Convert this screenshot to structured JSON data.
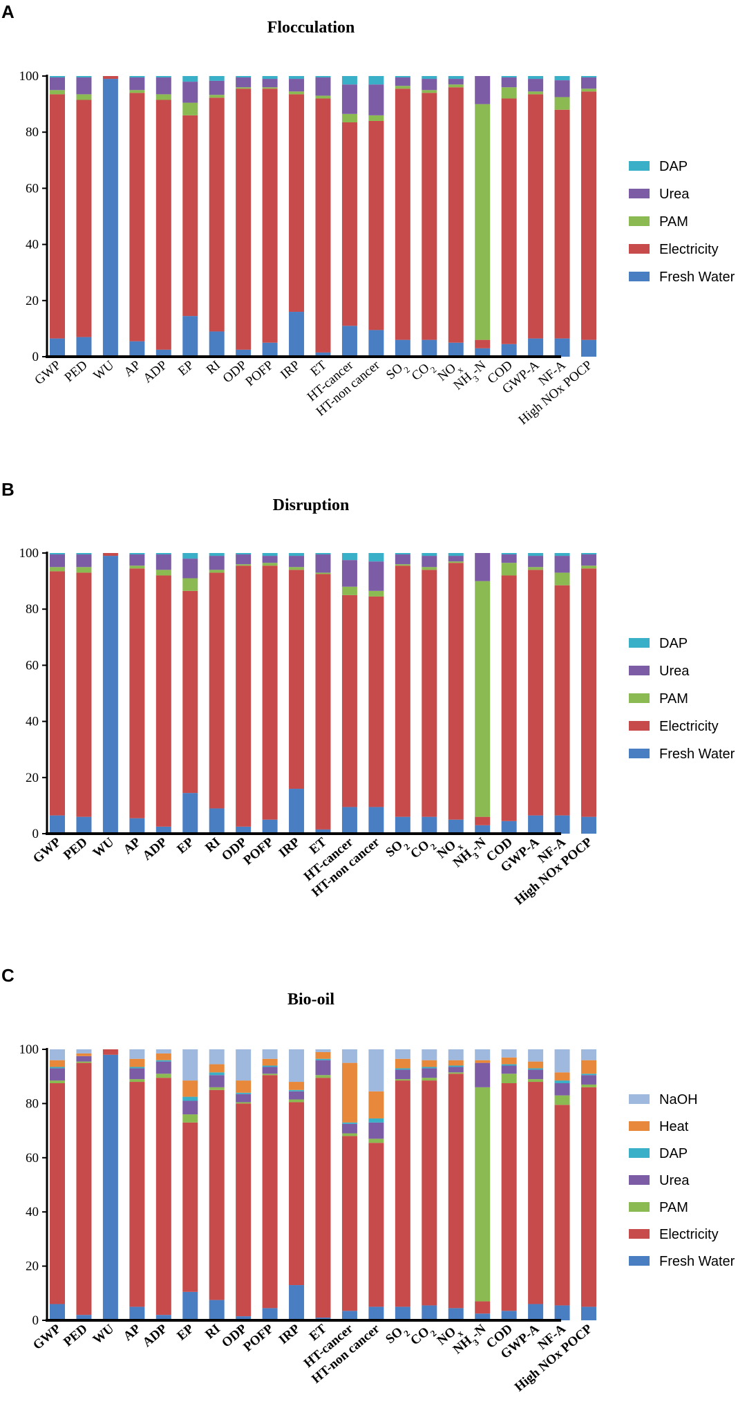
{
  "chart_data": [
    {
      "panel": "A",
      "type": "bar",
      "stacked": true,
      "title": "Flocculation",
      "bold_category_labels": false,
      "xlabel": "",
      "ylabel": "",
      "ylim": [
        0,
        100
      ],
      "yticks": [
        "0",
        "20",
        "40",
        "60",
        "80",
        "100"
      ],
      "categories": [
        "GWP",
        "PED",
        "WU",
        "AP",
        "ADP",
        "EP",
        "RI",
        "ODP",
        "POFP",
        "IRP",
        "ET",
        "HT-cancer",
        "HT-non cancer",
        "SO2",
        "CO2",
        "NOx",
        "NH3-N",
        "COD",
        "GWP-A",
        "NF-A",
        "High NOx POCP"
      ],
      "legend": [
        "DAP",
        "Urea",
        "PAM",
        "Electricity",
        "Fresh Water"
      ],
      "series": [
        {
          "name": "Fresh Water",
          "color": "#4a7ec2",
          "values": [
            6.5,
            7,
            99,
            5.5,
            2.5,
            14.5,
            9,
            2.5,
            5,
            16,
            1.5,
            11,
            9.5,
            6,
            6,
            5,
            3,
            4.5,
            6.5,
            6.5,
            6
          ]
        },
        {
          "name": "Electricity",
          "color": "#c84b4b",
          "values": [
            87,
            84.5,
            1,
            88.5,
            89,
            71.5,
            83.3,
            93,
            90.5,
            77.5,
            90.5,
            72.5,
            74.5,
            89.5,
            88,
            91,
            3,
            87.5,
            87,
            81.5,
            88.5
          ]
        },
        {
          "name": "PAM",
          "color": "#8cba52",
          "values": [
            1.5,
            2,
            0,
            1,
            2,
            4.5,
            1,
            0.5,
            0.5,
            1,
            1,
            3,
            2,
            1,
            1,
            1,
            84,
            4,
            1,
            4.5,
            1
          ]
        },
        {
          "name": "Urea",
          "color": "#7d5ca6",
          "values": [
            4.5,
            6,
            0,
            4.5,
            6,
            7.5,
            5,
            3.5,
            3,
            4.5,
            6.5,
            10.5,
            11,
            3,
            4,
            2,
            10,
            3.5,
            4.5,
            6,
            4
          ]
        },
        {
          "name": "DAP",
          "color": "#3ab0c8",
          "values": [
            0.5,
            0.5,
            0,
            0.5,
            0.5,
            2,
            1.7,
            0.5,
            1,
            1,
            0.5,
            3,
            3,
            0.5,
            1,
            1,
            0,
            0.5,
            1,
            1.5,
            0.5
          ]
        }
      ]
    },
    {
      "panel": "B",
      "type": "bar",
      "stacked": true,
      "title": "Disruption",
      "bold_category_labels": true,
      "xlabel": "",
      "ylabel": "",
      "ylim": [
        0,
        100
      ],
      "yticks": [
        "0",
        "20",
        "40",
        "60",
        "80",
        "100"
      ],
      "categories": [
        "GWP",
        "PED",
        "WU",
        "AP",
        "ADP",
        "EP",
        "RI",
        "ODP",
        "POFP",
        "IRP",
        "ET",
        "HT-cancer",
        "HT-non cancer",
        "SO2",
        "CO2",
        "NOx",
        "NH3-N",
        "COD",
        "GWP-A",
        "NF-A",
        "High NOx POCP"
      ],
      "legend": [
        "DAP",
        "Urea",
        "PAM",
        "Electricity",
        "Fresh Water"
      ],
      "series": [
        {
          "name": "Fresh Water",
          "color": "#4a7ec2",
          "values": [
            6.5,
            6,
            99,
            5.5,
            2.5,
            14.5,
            9,
            2.5,
            5,
            16,
            1.5,
            9.5,
            9.5,
            6,
            6,
            5,
            3,
            4.5,
            6.5,
            6.5,
            6
          ]
        },
        {
          "name": "Electricity",
          "color": "#c84b4b",
          "values": [
            87,
            87,
            1,
            89,
            89.5,
            72,
            84,
            93,
            90.5,
            78,
            91,
            75.5,
            75,
            89.5,
            88,
            91.5,
            3,
            87.5,
            87.5,
            82,
            88.5
          ]
        },
        {
          "name": "PAM",
          "color": "#8cba52",
          "values": [
            1.5,
            2,
            0,
            1,
            2,
            4.5,
            1,
            0.5,
            1,
            1,
            0.5,
            3,
            2,
            0.5,
            1,
            0.5,
            84,
            4.5,
            1,
            4.5,
            1
          ]
        },
        {
          "name": "Urea",
          "color": "#7d5ca6",
          "values": [
            4.5,
            4.5,
            0,
            4,
            5.5,
            7,
            5,
            3.5,
            2.5,
            4,
            6.5,
            9.5,
            10.5,
            3.5,
            4,
            2,
            10,
            3,
            4,
            6,
            4
          ]
        },
        {
          "name": "DAP",
          "color": "#3ab0c8",
          "values": [
            0.5,
            0.5,
            0,
            0.5,
            0.5,
            2,
            1,
            0.5,
            1,
            1,
            0.5,
            2.5,
            3,
            0.5,
            1,
            1,
            0,
            0.5,
            1,
            1,
            0.5
          ]
        }
      ]
    },
    {
      "panel": "C",
      "type": "bar",
      "stacked": true,
      "title": "Bio-oil",
      "bold_category_labels": true,
      "xlabel": "",
      "ylabel": "",
      "ylim": [
        0,
        100
      ],
      "yticks": [
        "0",
        "20",
        "40",
        "60",
        "80",
        "100"
      ],
      "categories": [
        "GWP",
        "PED",
        "WU",
        "AP",
        "ADP",
        "EP",
        "RI",
        "ODP",
        "POFP",
        "IRP",
        "ET",
        "HT-cancer",
        "HT-non cancer",
        "SO2",
        "CO2",
        "NOx",
        "NH3-N",
        "COD",
        "GWP-A",
        "NF-A",
        "High NOx POCP"
      ],
      "legend": [
        "NaOH",
        "Heat",
        "DAP",
        "Urea",
        "PAM",
        "Electricity",
        "Fresh Water"
      ],
      "series": [
        {
          "name": "Fresh Water",
          "color": "#4a7ec2",
          "values": [
            6,
            2,
            98,
            5,
            2,
            10.5,
            7.5,
            1.5,
            4.5,
            13,
            1,
            3.5,
            5,
            5,
            5.5,
            4.5,
            2.5,
            3.5,
            6,
            5.5,
            5
          ]
        },
        {
          "name": "Electricity",
          "color": "#c84b4b",
          "values": [
            81.5,
            93,
            2,
            83,
            87.5,
            62.5,
            77.5,
            78.5,
            86,
            67.5,
            88.5,
            64.5,
            60.5,
            83.5,
            83,
            86.5,
            4.5,
            84,
            82,
            74,
            81
          ]
        },
        {
          "name": "PAM",
          "color": "#8cba52",
          "values": [
            1,
            0.5,
            0,
            1,
            1.5,
            3,
            1,
            0.5,
            0.5,
            1,
            1,
            1,
            1.5,
            0.5,
            1,
            0.5,
            79,
            3.5,
            1,
            3.5,
            1
          ]
        },
        {
          "name": "Urea",
          "color": "#7d5ca6",
          "values": [
            4.5,
            2,
            0,
            4,
            4.5,
            5,
            4.5,
            3,
            2.5,
            3,
            5.5,
            3.5,
            6,
            3.5,
            3.5,
            2,
            9,
            3,
            3.5,
            4.5,
            3.5
          ]
        },
        {
          "name": "DAP",
          "color": "#3ab0c8",
          "values": [
            0.5,
            0,
            0,
            0.5,
            0.5,
            1.5,
            1,
            0.5,
            0.5,
            0.5,
            0.5,
            0.5,
            1.5,
            0.5,
            0.5,
            0.5,
            0,
            0.5,
            0.5,
            1,
            0.5
          ]
        },
        {
          "name": "Heat",
          "color": "#e8883a",
          "values": [
            2.5,
            1,
            0,
            3,
            2.5,
            6,
            3,
            4.5,
            2.5,
            3,
            2.5,
            22,
            10,
            3.5,
            2.5,
            2,
            1,
            2.5,
            2.5,
            3,
            5
          ]
        },
        {
          "name": "NaOH",
          "color": "#9fb8de",
          "values": [
            4,
            1.5,
            0,
            3.5,
            1.5,
            11.5,
            5.5,
            11.5,
            3.5,
            12,
            1,
            5,
            15.5,
            3.5,
            4,
            4,
            4,
            3,
            4.5,
            8.5,
            4
          ]
        }
      ]
    }
  ]
}
